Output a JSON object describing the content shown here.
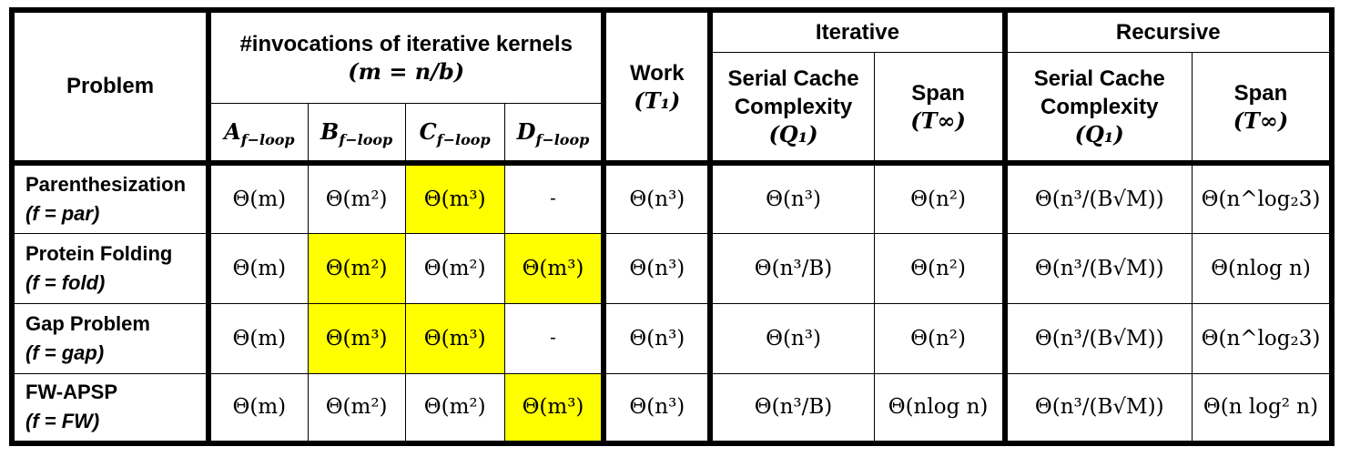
{
  "header": {
    "problem": "Problem",
    "invocations_line1": "#invocations of iterative kernels",
    "invocations_line2": "(m = n/b)",
    "work_line1": "Work",
    "work_line2": "(T₁)",
    "iterative": "Iterative",
    "recursive": "Recursive",
    "serial_cache_line1": "Serial Cache",
    "serial_cache_line2": "Complexity",
    "serial_cache_line3": "(Q₁)",
    "span_line1": "Span",
    "span_line2": "(T∞)",
    "kernels": [
      {
        "base": "A",
        "sub": "f−loop"
      },
      {
        "base": "B",
        "sub": "f−loop"
      },
      {
        "base": "C",
        "sub": "f−loop"
      },
      {
        "base": "D",
        "sub": "f−loop"
      }
    ]
  },
  "rows": [
    {
      "name": "Parenthesization",
      "f": "(f = par)",
      "cells": [
        "Θ(m)",
        "Θ(m²)",
        "Θ(m³)",
        "-",
        "Θ(n³)",
        "Θ(n³)",
        "Θ(n²)",
        "Θ(n³/(B√M))",
        "Θ(n^log₂3)"
      ],
      "highlight": [
        false,
        false,
        true,
        false,
        false,
        false,
        false,
        false,
        false
      ]
    },
    {
      "name": "Protein Folding",
      "f": "(f = fold)",
      "cells": [
        "Θ(m)",
        "Θ(m²)",
        "Θ(m²)",
        "Θ(m³)",
        "Θ(n³)",
        "Θ(n³/B)",
        "Θ(n²)",
        "Θ(n³/(B√M))",
        "Θ(nlog n)"
      ],
      "highlight": [
        false,
        true,
        false,
        true,
        false,
        false,
        false,
        false,
        false
      ]
    },
    {
      "name": "Gap Problem",
      "f": "(f = gap)",
      "cells": [
        "Θ(m)",
        "Θ(m³)",
        "Θ(m³)",
        "-",
        "Θ(n³)",
        "Θ(n³)",
        "Θ(n²)",
        "Θ(n³/(B√M))",
        "Θ(n^log₂3)"
      ],
      "highlight": [
        false,
        true,
        true,
        false,
        false,
        false,
        false,
        false,
        false
      ]
    },
    {
      "name": "FW-APSP",
      "f": "(f = FW)",
      "cells": [
        "Θ(m)",
        "Θ(m²)",
        "Θ(m²)",
        "Θ(m³)",
        "Θ(n³)",
        "Θ(n³/B)",
        "Θ(nlog n)",
        "Θ(n³/(B√M))",
        "Θ(n log² n)"
      ],
      "highlight": [
        false,
        false,
        false,
        true,
        false,
        false,
        false,
        false,
        false
      ]
    }
  ],
  "colors": {
    "highlight_bg": "#ffff00",
    "highlight_text": "#d00000",
    "border": "#000000"
  }
}
